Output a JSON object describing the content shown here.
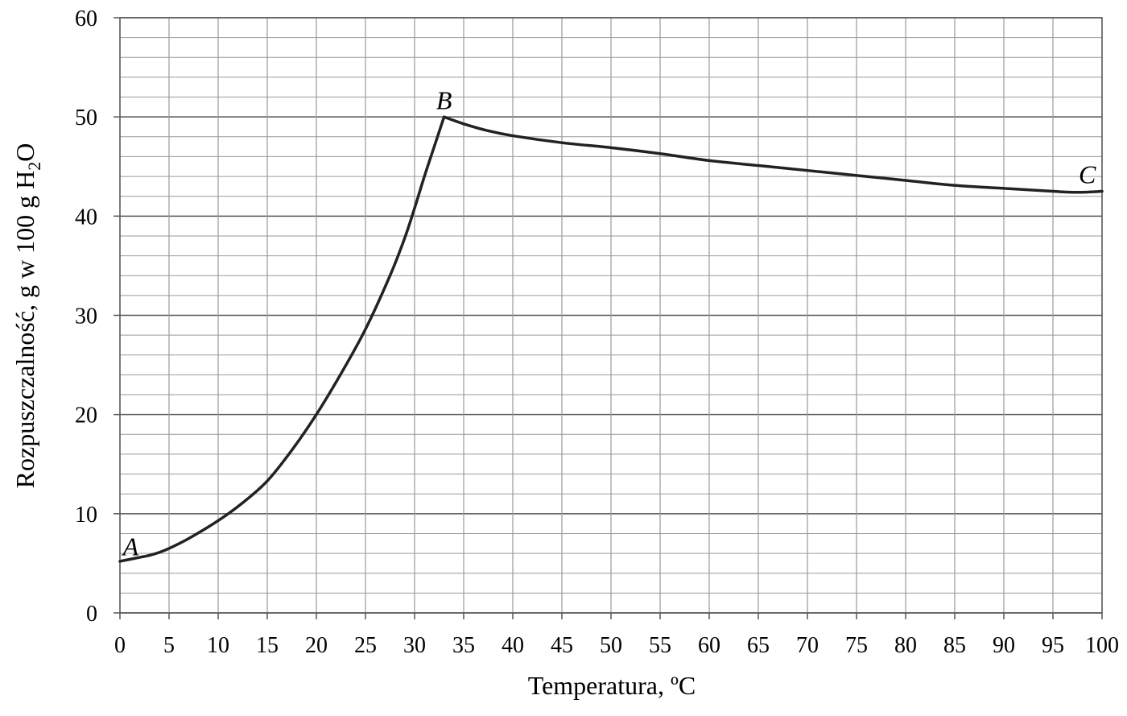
{
  "chart_data": {
    "type": "line",
    "title": "",
    "xlabel": "Temperatura, ºC",
    "ylabel": {
      "text_before": "Rozpuszczalność, g w 100 g H",
      "subscript": "2",
      "text_after": "O"
    },
    "xlim": [
      0,
      100
    ],
    "ylim": [
      0,
      60
    ],
    "x_ticks": [
      0,
      5,
      10,
      15,
      20,
      25,
      30,
      35,
      40,
      45,
      50,
      55,
      60,
      65,
      70,
      75,
      80,
      85,
      90,
      95,
      100
    ],
    "y_ticks": [
      0,
      10,
      20,
      30,
      40,
      50,
      60
    ],
    "grid": true,
    "grid_minor_y_step": 2,
    "line_color": "#222222",
    "grid_color": "#9a9a9a",
    "series": [
      {
        "x": [
          0,
          1,
          2,
          3,
          4,
          5,
          7,
          10,
          12.5,
          15,
          17.5,
          20,
          22.5,
          25,
          27.5,
          29,
          30,
          31,
          32,
          33,
          35,
          37.5,
          40,
          45,
          50,
          55,
          60,
          65,
          70,
          75,
          80,
          85,
          90,
          95,
          97.5,
          100
        ],
        "y": [
          5.2,
          5.4,
          5.6,
          5.8,
          6.1,
          6.5,
          7.5,
          9.3,
          11.1,
          13.3,
          16.4,
          20.0,
          24.1,
          28.6,
          34.0,
          37.8,
          40.8,
          44.0,
          47.0,
          50.0,
          49.3,
          48.6,
          48.1,
          47.4,
          46.9,
          46.3,
          45.6,
          45.1,
          44.6,
          44.1,
          43.6,
          43.1,
          42.8,
          42.5,
          42.4,
          42.5
        ]
      }
    ],
    "annotations": [
      {
        "text": "A",
        "x": 0.3,
        "y": 5.8
      },
      {
        "text": "B",
        "x": 33,
        "y": 50.8
      },
      {
        "text": "C",
        "x": 98.5,
        "y": 43.3
      }
    ]
  }
}
